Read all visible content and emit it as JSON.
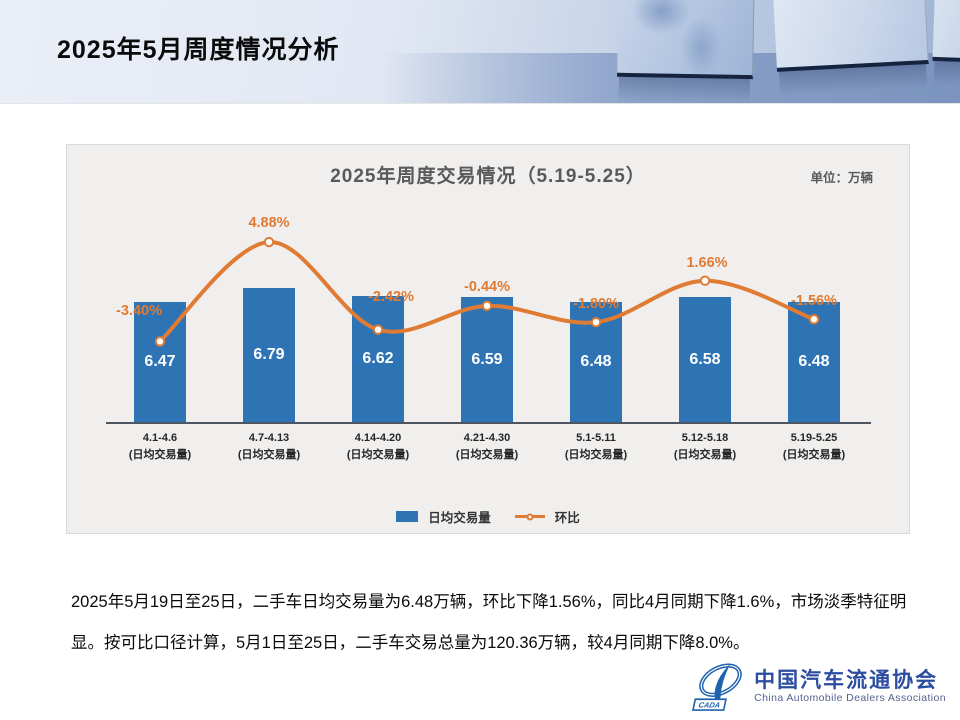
{
  "header": {
    "title": "2025年5月周度情况分析"
  },
  "chart": {
    "title": "2025年周度交易情况（5.19-5.25）",
    "unit_label": "单位：万辆"
  },
  "chart_data": {
    "type": "bar",
    "combo_with": "line",
    "title": "2025年周度交易情况（5.19-5.25）",
    "unit": "万辆",
    "categories": [
      "4.1-4.6",
      "4.7-4.13",
      "4.14-4.20",
      "4.21-4.30",
      "5.1-5.11",
      "5.12-5.18",
      "5.19-5.25"
    ],
    "category_sublabel": "(日均交易量)",
    "series": [
      {
        "name": "日均交易量",
        "type": "bar",
        "color": "#2E74B5",
        "values": [
          6.47,
          6.79,
          6.62,
          6.59,
          6.48,
          6.58,
          6.48
        ],
        "labels": [
          "6.47",
          "6.79",
          "6.62",
          "6.59",
          "6.48",
          "6.58",
          "6.48"
        ]
      },
      {
        "name": "环比",
        "type": "line",
        "color": "#E07B34",
        "values": [
          -3.4,
          4.88,
          -2.42,
          -0.44,
          -1.8,
          1.66,
          -1.56
        ],
        "labels": [
          "-3.40%",
          "4.88%",
          "-2.42%",
          "-0.44%",
          "-1.80%",
          "1.66%",
          "-1.56%"
        ]
      }
    ],
    "legend_position": "bottom",
    "grid": false,
    "value_labels_shown": true
  },
  "summary": {
    "text": "2025年5月19日至25日，二手车日均交易量为6.48万辆，环比下降1.56%，同比4月同期下降1.6%，市场淡季特征明显。按可比口径计算，5月1日至25日，二手车交易总量为120.36万辆，较4月同期下降8.0%。"
  },
  "logo": {
    "name_cn": "中国汽车流通协会",
    "name_en": "China Automobile Dealers Association",
    "badge": "CADA"
  },
  "colors": {
    "bar_blue": "#2E74B5",
    "line_orange": "#E07B34",
    "panel_bg": "#F0EFEE",
    "title_gray": "#595959",
    "logo_blue": "#2B4CA0"
  }
}
